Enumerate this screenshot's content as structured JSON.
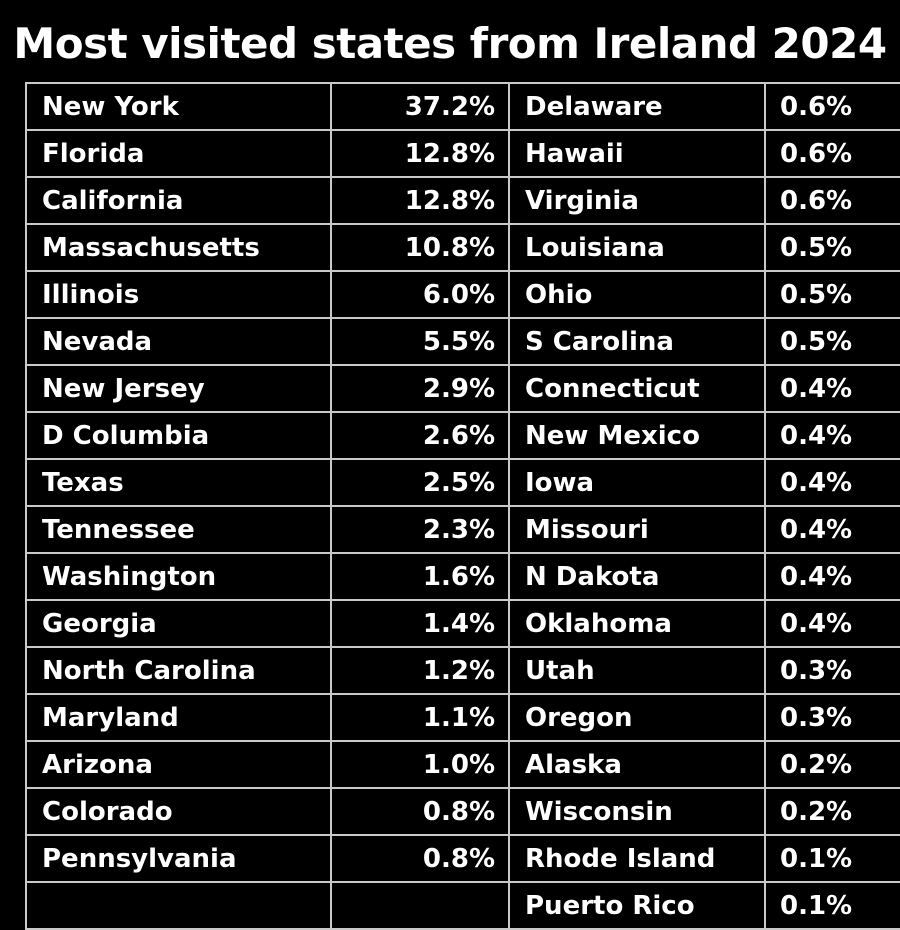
{
  "title": "Most visited states from Ireland 2024",
  "chart_data": {
    "type": "table",
    "title": "Most visited states from Ireland 2024",
    "left": [
      {
        "state": "New York",
        "share": "37.2%"
      },
      {
        "state": "Florida",
        "share": "12.8%"
      },
      {
        "state": "California",
        "share": "12.8%"
      },
      {
        "state": "Massachusetts",
        "share": "10.8%"
      },
      {
        "state": "Illinois",
        "share": "6.0%"
      },
      {
        "state": "Nevada",
        "share": "5.5%"
      },
      {
        "state": "New Jersey",
        "share": "2.9%"
      },
      {
        "state": "D Columbia",
        "share": "2.6%"
      },
      {
        "state": "Texas",
        "share": "2.5%"
      },
      {
        "state": "Tennessee",
        "share": "2.3%"
      },
      {
        "state": "Washington",
        "share": "1.6%"
      },
      {
        "state": "Georgia",
        "share": "1.4%"
      },
      {
        "state": "North Carolina",
        "share": "1.2%"
      },
      {
        "state": "Maryland",
        "share": "1.1%"
      },
      {
        "state": "Arizona",
        "share": "1.0%"
      },
      {
        "state": "Colorado",
        "share": "0.8%"
      },
      {
        "state": "Pennsylvania",
        "share": "0.8%"
      },
      {
        "state": "",
        "share": ""
      }
    ],
    "right": [
      {
        "state": "Delaware",
        "share": "0.6%"
      },
      {
        "state": "Hawaii",
        "share": "0.6%"
      },
      {
        "state": "Virginia",
        "share": "0.6%"
      },
      {
        "state": "Louisiana",
        "share": "0.5%"
      },
      {
        "state": "Ohio",
        "share": "0.5%"
      },
      {
        "state": "S Carolina",
        "share": "0.5%"
      },
      {
        "state": "Connecticut",
        "share": "0.4%"
      },
      {
        "state": "New Mexico",
        "share": "0.4%"
      },
      {
        "state": "Iowa",
        "share": "0.4%"
      },
      {
        "state": "Missouri",
        "share": "0.4%"
      },
      {
        "state": "N Dakota",
        "share": "0.4%"
      },
      {
        "state": "Oklahoma",
        "share": "0.4%"
      },
      {
        "state": "Utah",
        "share": "0.3%"
      },
      {
        "state": "Oregon",
        "share": "0.3%"
      },
      {
        "state": "Alaska",
        "share": "0.2%"
      },
      {
        "state": "Wisconsin",
        "share": "0.2%"
      },
      {
        "state": "Rhode Island",
        "share": "0.1%"
      },
      {
        "state": "Puerto Rico",
        "share": "0.1%"
      }
    ]
  }
}
